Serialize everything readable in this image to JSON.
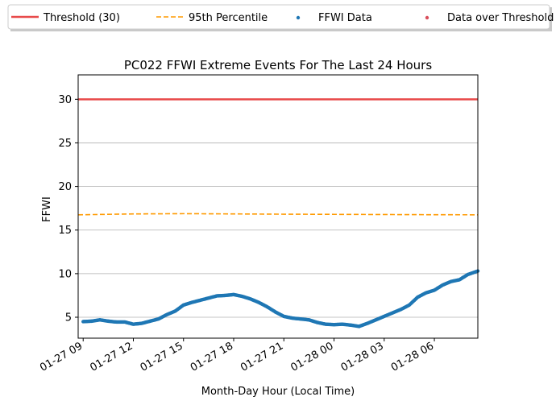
{
  "chart_data": {
    "type": "line",
    "title": "PC022 FFWI Extreme Events For The Last 24 Hours",
    "xlabel": "Month-Day Hour (Local Time)",
    "ylabel": "FFWI",
    "xlim": [
      -0.3,
      23.6
    ],
    "ylim": [
      2.6,
      32.8
    ],
    "x_ticks": [
      {
        "hour": 0,
        "label": "01-27 09"
      },
      {
        "hour": 3,
        "label": "01-27 12"
      },
      {
        "hour": 6,
        "label": "01-27 15"
      },
      {
        "hour": 9,
        "label": "01-27 18"
      },
      {
        "hour": 12,
        "label": "01-27 21"
      },
      {
        "hour": 15,
        "label": "01-28 00"
      },
      {
        "hour": 18,
        "label": "01-28 03"
      },
      {
        "hour": 21,
        "label": "01-28 06"
      }
    ],
    "y_ticks": [
      5,
      10,
      15,
      20,
      25,
      30
    ],
    "grid": "horizontal",
    "legend": [
      {
        "label": "Threshold (30)",
        "kind": "solid-line",
        "color": "#e84a4a"
      },
      {
        "label": "95th Percentile",
        "kind": "dashed-line",
        "color": "#ff9a00"
      },
      {
        "label": "FFWI Data",
        "kind": "dot",
        "color": "#1f77b4"
      },
      {
        "label": "Data over Threshold",
        "kind": "dot",
        "color": "#d94f5c"
      }
    ],
    "legend_placement": "top, outside plot",
    "series": [
      {
        "name": "Threshold (30)",
        "color": "#e84a4a",
        "style": "solid",
        "x": [
          -0.3,
          23.6
        ],
        "y": [
          30,
          30
        ]
      },
      {
        "name": "95th Percentile",
        "color": "#ff9a00",
        "style": "dashed",
        "x": [
          -0.3,
          3,
          6,
          9,
          12,
          15,
          18,
          21,
          23.6
        ],
        "y": [
          16.75,
          16.85,
          16.88,
          16.85,
          16.82,
          16.8,
          16.78,
          16.76,
          16.75
        ]
      },
      {
        "name": "FFWI Data",
        "color": "#1f77b4",
        "style": "dots",
        "x": [
          0,
          0.5,
          1,
          1.5,
          2,
          2.5,
          3,
          3.5,
          4,
          4.5,
          5,
          5.5,
          6,
          6.5,
          7,
          7.5,
          8,
          8.5,
          9,
          9.5,
          10,
          10.5,
          11,
          11.5,
          12,
          12.5,
          13,
          13.5,
          14,
          14.5,
          15,
          15.5,
          16,
          16.5,
          17,
          17.5,
          18,
          18.5,
          19,
          19.5,
          20,
          20.5,
          21,
          21.5,
          22,
          22.5,
          23,
          23.6
        ],
        "y": [
          4.5,
          4.55,
          4.7,
          4.55,
          4.45,
          4.45,
          4.2,
          4.3,
          4.55,
          4.8,
          5.3,
          5.7,
          6.4,
          6.7,
          6.95,
          7.2,
          7.45,
          7.5,
          7.6,
          7.4,
          7.1,
          6.7,
          6.2,
          5.6,
          5.1,
          4.9,
          4.8,
          4.7,
          4.4,
          4.2,
          4.15,
          4.2,
          4.1,
          3.95,
          4.3,
          4.7,
          5.1,
          5.5,
          5.9,
          6.4,
          7.3,
          7.8,
          8.1,
          8.7,
          9.1,
          9.3,
          9.9,
          10.3
        ]
      },
      {
        "name": "Data over Threshold",
        "color": "#d94f5c",
        "style": "dots",
        "x": [],
        "y": []
      }
    ]
  }
}
